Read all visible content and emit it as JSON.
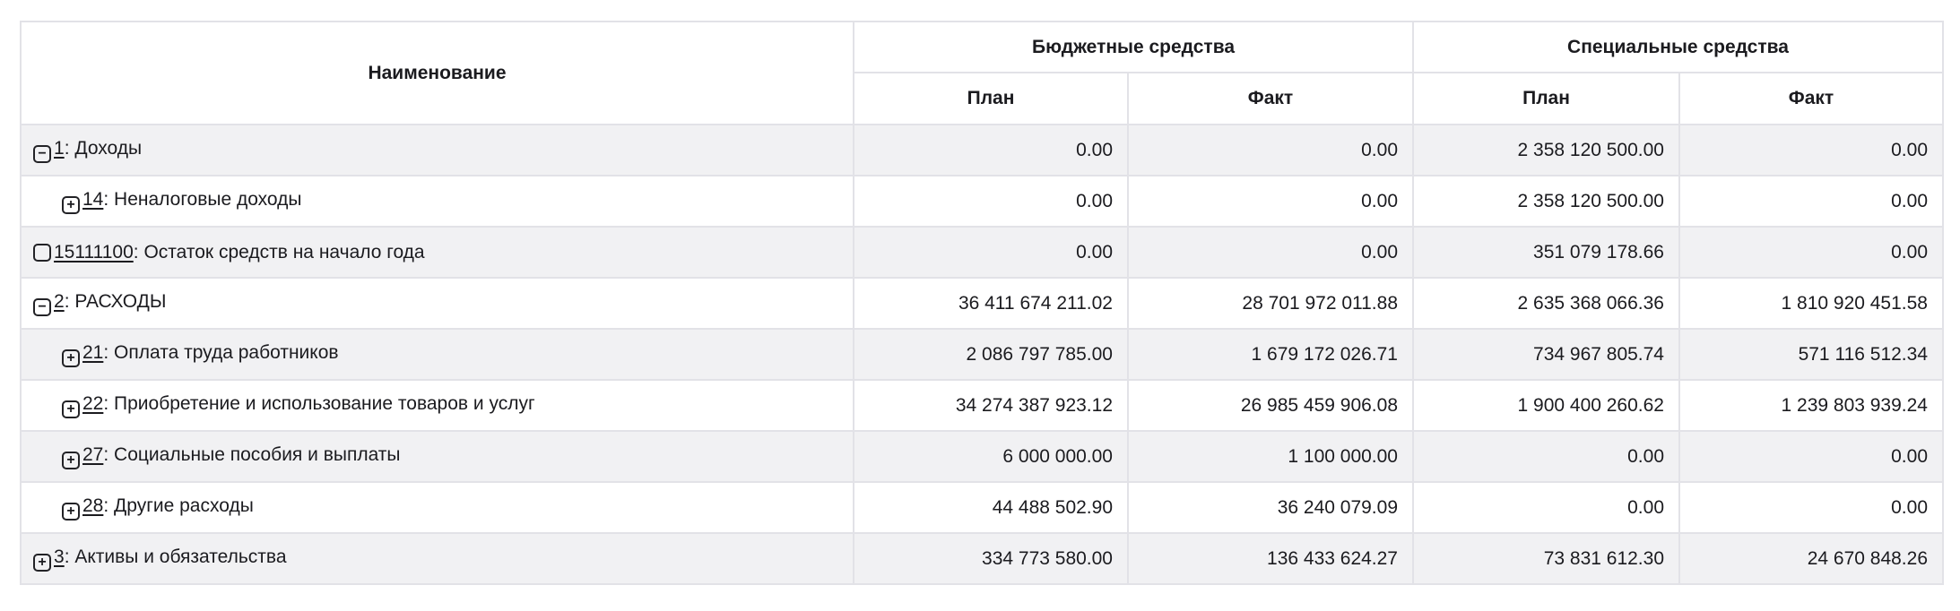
{
  "table": {
    "header": {
      "name_column": "Наименование",
      "groups": [
        {
          "label": "Бюджетные средства",
          "columns": [
            "План",
            "Факт"
          ]
        },
        {
          "label": "Специальные средства",
          "columns": [
            "План",
            "Факт"
          ]
        }
      ]
    },
    "code_separator": ": ",
    "icons": {
      "collapse": "−",
      "expand": "+",
      "leaf": ""
    },
    "colors": {
      "row_alt_background": "#f1f1f3",
      "border": "#e2e2e7",
      "text": "#1b1b1f"
    },
    "rows": [
      {
        "icon": "collapse",
        "code": "1",
        "name": "Доходы",
        "indent": 0,
        "values": [
          "0.00",
          "0.00",
          "2 358 120 500.00",
          "0.00"
        ]
      },
      {
        "icon": "expand",
        "code": "14",
        "name": "Неналоговые доходы",
        "indent": 1,
        "values": [
          "0.00",
          "0.00",
          "2 358 120 500.00",
          "0.00"
        ]
      },
      {
        "icon": "leaf",
        "code": "15111100",
        "name": "Остаток средств на начало года",
        "indent": 0,
        "values": [
          "0.00",
          "0.00",
          "351 079 178.66",
          "0.00"
        ]
      },
      {
        "icon": "collapse",
        "code": "2",
        "name": "РАСХОДЫ",
        "indent": 0,
        "values": [
          "36 411 674 211.02",
          "28 701 972 011.88",
          "2 635 368 066.36",
          "1 810 920 451.58"
        ]
      },
      {
        "icon": "expand",
        "code": "21",
        "name": "Оплата труда работников",
        "indent": 1,
        "values": [
          "2 086 797 785.00",
          "1 679 172 026.71",
          "734 967 805.74",
          "571 116 512.34"
        ]
      },
      {
        "icon": "expand",
        "code": "22",
        "name": "Приобретение и использование товаров и услуг",
        "indent": 1,
        "values": [
          "34 274 387 923.12",
          "26 985 459 906.08",
          "1 900 400 260.62",
          "1 239 803 939.24"
        ]
      },
      {
        "icon": "expand",
        "code": "27",
        "name": "Социальные пособия и выплаты",
        "indent": 1,
        "values": [
          "6 000 000.00",
          "1 100 000.00",
          "0.00",
          "0.00"
        ]
      },
      {
        "icon": "expand",
        "code": "28",
        "name": "Другие расходы",
        "indent": 1,
        "values": [
          "44 488 502.90",
          "36 240 079.09",
          "0.00",
          "0.00"
        ]
      },
      {
        "icon": "expand",
        "code": "3",
        "name": "Активы и обязательства",
        "indent": 0,
        "values": [
          "334 773 580.00",
          "136 433 624.27",
          "73 831 612.30",
          "24 670 848.26"
        ]
      }
    ]
  }
}
